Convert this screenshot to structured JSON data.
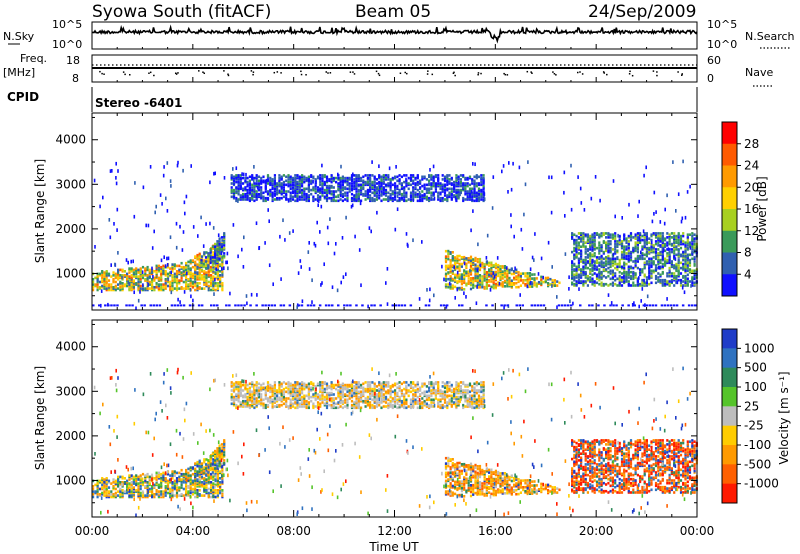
{
  "header": {
    "station": "Syowa South (fitACF)",
    "beam": "Beam 05",
    "date": "24/Sep/2009"
  },
  "top_panels": {
    "nsky_label": "N.Sky",
    "nsky_ticks": [
      "10^5",
      "10^0"
    ],
    "nsearch_label": "N.Search",
    "nsearch_ticks": [
      "10^5",
      "10^0"
    ],
    "freq_label": "Freq.",
    "freq_unit": "[MHz]",
    "freq_ticks": [
      "18",
      "8"
    ],
    "nave_label": "Nave",
    "nave_ticks": [
      "60",
      "0"
    ],
    "cpid_label": "CPID",
    "cpid_value": "Stereo -6401"
  },
  "power_scale": {
    "label": "Power [dB]",
    "ticks": [
      "28",
      "24",
      "20",
      "16",
      "12",
      "8",
      "4"
    ],
    "colors": [
      "#ff0000",
      "#ff5a00",
      "#ff9a00",
      "#ffd000",
      "#a8d020",
      "#3a9a5a",
      "#3060b0",
      "#1010ff"
    ]
  },
  "velocity_scale": {
    "label": "Velocity [m s⁻¹]",
    "ticks": [
      "1000",
      "500",
      "100",
      "25",
      "-25",
      "-100",
      "-500",
      "-1000"
    ],
    "colors": [
      "#1f3cc8",
      "#2f72c0",
      "#2e8a5a",
      "#55c42a",
      "#bdbdbd",
      "#ffcc00",
      "#ff9a00",
      "#ff6000",
      "#ff1a00"
    ]
  },
  "chart_data": [
    {
      "type": "heatmap",
      "title": "Power",
      "ylabel": "Slant Range [km]",
      "y_ticks": [
        "4000",
        "3000",
        "2000",
        "1000"
      ],
      "xlim": [
        "00:00",
        "24:00"
      ],
      "ylim": [
        180,
        4600
      ],
      "echo_regions": [
        {
          "t": [
            0.0,
            5.2
          ],
          "range": [
            600,
            1350
          ],
          "level": "strong"
        },
        {
          "t": [
            4.3,
            5.2
          ],
          "range": [
            1000,
            1800
          ],
          "level": "moderate"
        },
        {
          "t": [
            5.5,
            15.5
          ],
          "range": [
            2600,
            3200
          ],
          "level": "weak"
        },
        {
          "t": [
            14.0,
            18.5
          ],
          "range": [
            600,
            1500
          ],
          "level": "strong"
        },
        {
          "t": [
            19.0,
            24.0
          ],
          "range": [
            700,
            1900
          ],
          "level": "moderate"
        }
      ]
    },
    {
      "type": "heatmap",
      "title": "Velocity",
      "ylabel": "Slant Range [km]",
      "y_ticks": [
        "4000",
        "3000",
        "2000",
        "1000"
      ],
      "x_ticks": [
        "00:00",
        "04:00",
        "08:00",
        "12:00",
        "16:00",
        "20:00",
        "00:00"
      ],
      "xlabel": "Time UT",
      "xlim": [
        "00:00",
        "24:00"
      ],
      "ylim": [
        180,
        4600
      ],
      "echo_regions": [
        {
          "t": [
            0.0,
            5.2
          ],
          "range": [
            600,
            1350
          ],
          "velocity": "mixed -500 to 500"
        },
        {
          "t": [
            5.5,
            15.5
          ],
          "range": [
            2600,
            3200
          ],
          "velocity": "near 0 with -100 patches"
        },
        {
          "t": [
            14.0,
            18.5
          ],
          "range": [
            600,
            1500
          ],
          "velocity": "-100 to -500"
        },
        {
          "t": [
            19.0,
            24.0
          ],
          "range": [
            700,
            1900
          ],
          "velocity": "-500 to -1000 with 500 patches"
        }
      ]
    }
  ]
}
